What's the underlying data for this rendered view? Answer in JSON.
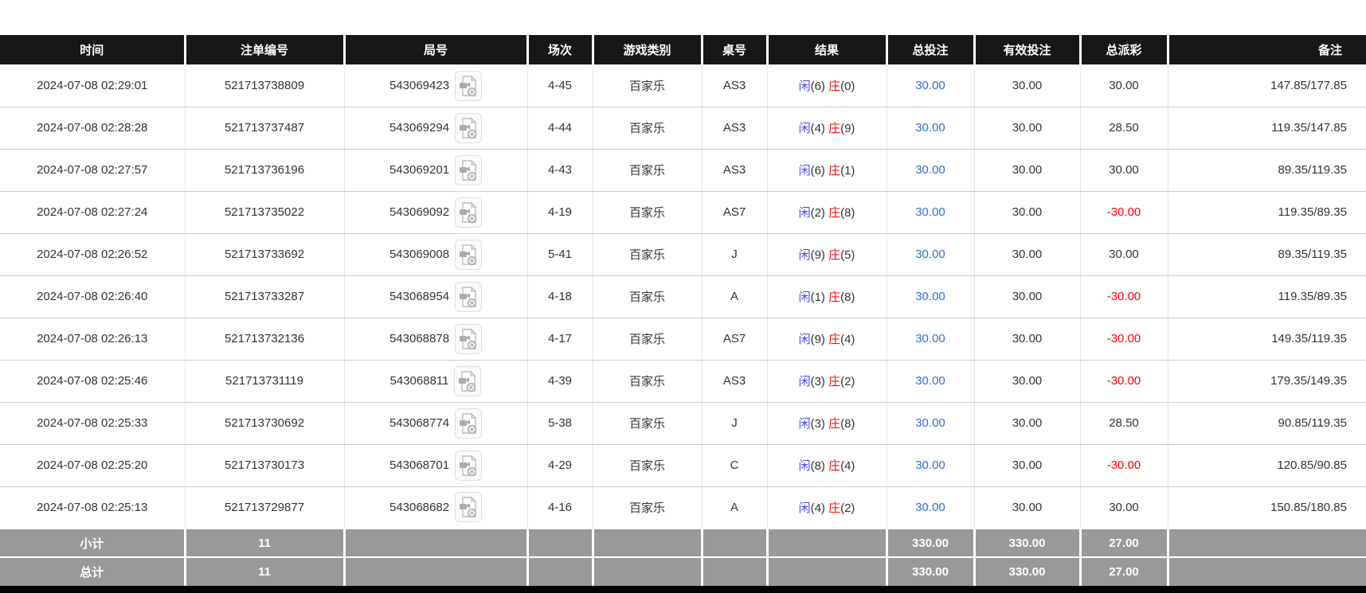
{
  "table": {
    "columns": [
      {
        "key": "time",
        "label": "时间"
      },
      {
        "key": "bet_id",
        "label": "注单编号"
      },
      {
        "key": "round_no",
        "label": "局号"
      },
      {
        "key": "session",
        "label": "场次"
      },
      {
        "key": "game_type",
        "label": "游戏类别"
      },
      {
        "key": "table_no",
        "label": "桌号"
      },
      {
        "key": "result",
        "label": "结果"
      },
      {
        "key": "total_bet",
        "label": "总投注"
      },
      {
        "key": "valid_bet",
        "label": "有效投注"
      },
      {
        "key": "total_payout",
        "label": "总派彩"
      },
      {
        "key": "remark",
        "label": "备注"
      }
    ],
    "result_labels": {
      "player": "闲",
      "banker": "庄"
    },
    "video_icon": "video-record-icon",
    "rows": [
      {
        "time": "2024-07-08 02:29:01",
        "bet_id": "521713738809",
        "round_no": "543069423",
        "session": "4-45",
        "game_type": "百家乐",
        "table_no": "AS3",
        "result_player": "6",
        "result_banker": "0",
        "total_bet": "30.00",
        "valid_bet": "30.00",
        "total_payout": "30.00",
        "remark": "147.85/177.85"
      },
      {
        "time": "2024-07-08 02:28:28",
        "bet_id": "521713737487",
        "round_no": "543069294",
        "session": "4-44",
        "game_type": "百家乐",
        "table_no": "AS3",
        "result_player": "4",
        "result_banker": "9",
        "total_bet": "30.00",
        "valid_bet": "30.00",
        "total_payout": "28.50",
        "remark": "119.35/147.85"
      },
      {
        "time": "2024-07-08 02:27:57",
        "bet_id": "521713736196",
        "round_no": "543069201",
        "session": "4-43",
        "game_type": "百家乐",
        "table_no": "AS3",
        "result_player": "6",
        "result_banker": "1",
        "total_bet": "30.00",
        "valid_bet": "30.00",
        "total_payout": "30.00",
        "remark": "89.35/119.35"
      },
      {
        "time": "2024-07-08 02:27:24",
        "bet_id": "521713735022",
        "round_no": "543069092",
        "session": "4-19",
        "game_type": "百家乐",
        "table_no": "AS7",
        "result_player": "2",
        "result_banker": "8",
        "total_bet": "30.00",
        "valid_bet": "30.00",
        "total_payout": "-30.00",
        "remark": "119.35/89.35"
      },
      {
        "time": "2024-07-08 02:26:52",
        "bet_id": "521713733692",
        "round_no": "543069008",
        "session": "5-41",
        "game_type": "百家乐",
        "table_no": "J",
        "result_player": "9",
        "result_banker": "5",
        "total_bet": "30.00",
        "valid_bet": "30.00",
        "total_payout": "30.00",
        "remark": "89.35/119.35"
      },
      {
        "time": "2024-07-08 02:26:40",
        "bet_id": "521713733287",
        "round_no": "543068954",
        "session": "4-18",
        "game_type": "百家乐",
        "table_no": "A",
        "result_player": "1",
        "result_banker": "8",
        "total_bet": "30.00",
        "valid_bet": "30.00",
        "total_payout": "-30.00",
        "remark": "119.35/89.35"
      },
      {
        "time": "2024-07-08 02:26:13",
        "bet_id": "521713732136",
        "round_no": "543068878",
        "session": "4-17",
        "game_type": "百家乐",
        "table_no": "AS7",
        "result_player": "9",
        "result_banker": "4",
        "total_bet": "30.00",
        "valid_bet": "30.00",
        "total_payout": "-30.00",
        "remark": "149.35/119.35"
      },
      {
        "time": "2024-07-08 02:25:46",
        "bet_id": "521713731119",
        "round_no": "543068811",
        "session": "4-39",
        "game_type": "百家乐",
        "table_no": "AS3",
        "result_player": "3",
        "result_banker": "2",
        "total_bet": "30.00",
        "valid_bet": "30.00",
        "total_payout": "-30.00",
        "remark": "179.35/149.35"
      },
      {
        "time": "2024-07-08 02:25:33",
        "bet_id": "521713730692",
        "round_no": "543068774",
        "session": "5-38",
        "game_type": "百家乐",
        "table_no": "J",
        "result_player": "3",
        "result_banker": "8",
        "total_bet": "30.00",
        "valid_bet": "30.00",
        "total_payout": "28.50",
        "remark": "90.85/119.35"
      },
      {
        "time": "2024-07-08 02:25:20",
        "bet_id": "521713730173",
        "round_no": "543068701",
        "session": "4-29",
        "game_type": "百家乐",
        "table_no": "C",
        "result_player": "8",
        "result_banker": "4",
        "total_bet": "30.00",
        "valid_bet": "30.00",
        "total_payout": "-30.00",
        "remark": "120.85/90.85"
      },
      {
        "time": "2024-07-08 02:25:13",
        "bet_id": "521713729877",
        "round_no": "543068682",
        "session": "4-16",
        "game_type": "百家乐",
        "table_no": "A",
        "result_player": "4",
        "result_banker": "2",
        "total_bet": "30.00",
        "valid_bet": "30.00",
        "total_payout": "30.00",
        "remark": "150.85/180.85"
      }
    ],
    "subtotal": {
      "label": "小计",
      "count": "11",
      "total_bet": "330.00",
      "valid_bet": "330.00",
      "total_payout": "27.00"
    },
    "grand_total": {
      "label": "总计",
      "count": "11",
      "total_bet": "330.00",
      "valid_bet": "330.00",
      "total_payout": "27.00"
    }
  },
  "colors": {
    "header_bg": "#171717",
    "summary_bg": "#999999",
    "bet_blue": "#2d6fe0",
    "player_blue": "#4a4ae6",
    "banker_red": "#ee1111",
    "negative_red": "#ff0000",
    "body_text": "#333333"
  }
}
